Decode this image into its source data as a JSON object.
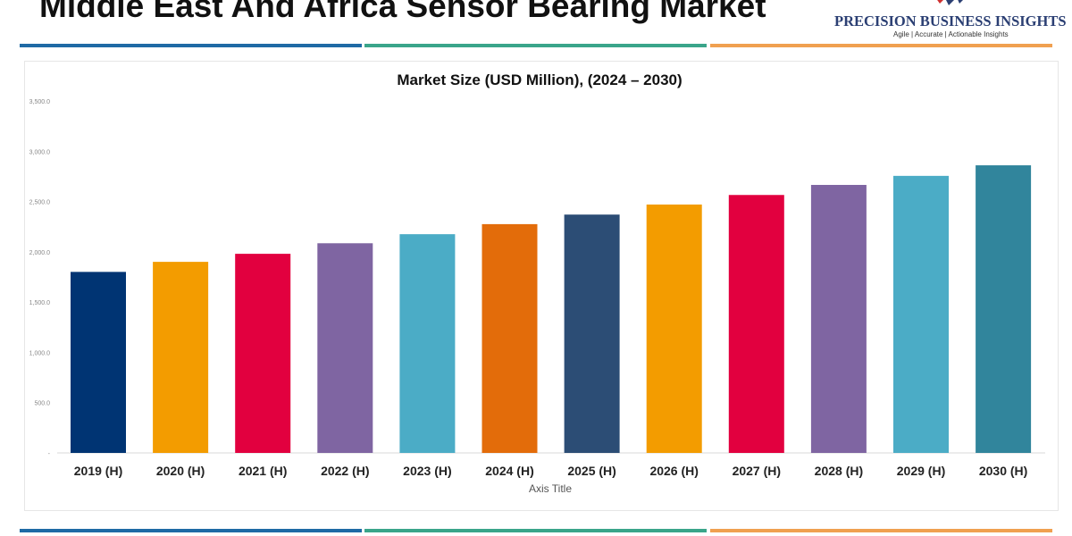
{
  "header": {
    "title": "Middle East And Africa Sensor Bearing Market"
  },
  "logo": {
    "name": "PRECISION BUSINESS INSIGHTS",
    "tagline": "Agile | Accurate | Actionable Insights"
  },
  "colors": {
    "line_blue": "#1f6aa5",
    "line_teal": "#3aa58a",
    "line_orange": "#f0a050"
  },
  "chart_data": {
    "type": "bar",
    "title": "Market Size (USD Million), (2024 – 2030)",
    "xlabel": "Axis Title",
    "ylabel": "",
    "ylim": [
      0,
      3500
    ],
    "yticks": [
      "-",
      "500.0",
      "1,000.0",
      "1,500.0",
      "2,000.0",
      "2,500.0",
      "3,000.0",
      "3,500.0"
    ],
    "grid": false,
    "categories": [
      "2019 (H)",
      "2020 (H)",
      "2021 (H)",
      "2022 (H)",
      "2023 (H)",
      "2024 (H)",
      "2025 (H)",
      "2026 (H)",
      "2027 (H)",
      "2028 (H)",
      "2029 (H)",
      "2030 (H)"
    ],
    "values": [
      1800,
      1900,
      1980,
      2085,
      2175,
      2275,
      2370,
      2470,
      2565,
      2665,
      2755,
      2860
    ],
    "bar_colors": [
      "#003473",
      "#f39c00",
      "#e2003f",
      "#7f65a2",
      "#4bacc6",
      "#e36c0a",
      "#2c4d75",
      "#f39c00",
      "#e2003f",
      "#7f65a2",
      "#4bacc6",
      "#31859c"
    ]
  }
}
